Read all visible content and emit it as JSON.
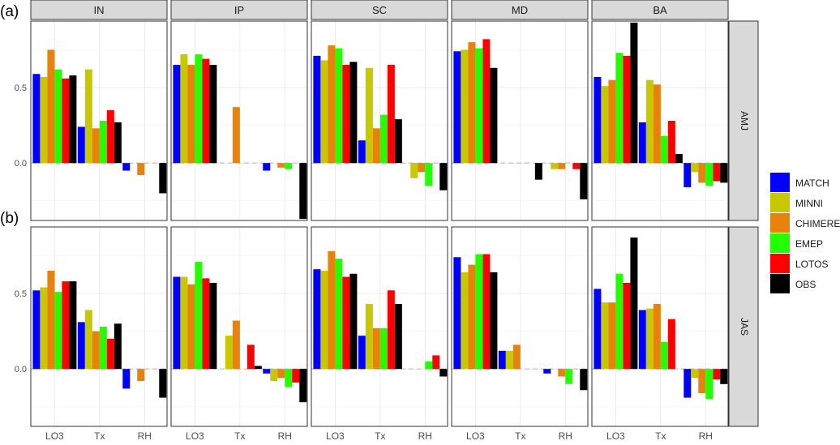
{
  "chart_data": {
    "type": "bar",
    "panel_labels": [
      "(a)",
      "(b)"
    ],
    "columns": [
      "IN",
      "IP",
      "SC",
      "MD",
      "BA"
    ],
    "rows": [
      "AMJ",
      "JAS"
    ],
    "categories": [
      "LO3",
      "Tx",
      "RH"
    ],
    "ylim": [
      -0.38,
      0.94
    ],
    "y_ticks": [
      "0.0",
      "0.5"
    ],
    "y_tick_values": [
      0.0,
      0.5
    ],
    "grid": true,
    "legend_position": "right",
    "series_names": [
      "MATCH",
      "MINNI",
      "CHIMERE",
      "EMEP",
      "LOTOS",
      "OBS"
    ],
    "series_colors": [
      "#0000ff",
      "#c8c800",
      "#e8820a",
      "#22ff00",
      "#ff0000",
      "#000000"
    ],
    "panels": {
      "AMJ": {
        "IN": [
          [
            0.59,
            0.57,
            0.75,
            0.62,
            0.56,
            0.58
          ],
          [
            0.24,
            0.62,
            0.23,
            0.28,
            0.35,
            0.27
          ],
          [
            -0.05,
            0,
            -0.08,
            0,
            0,
            -0.2
          ]
        ],
        "IP": [
          [
            0.65,
            0.72,
            0.65,
            0.72,
            0.69,
            0.65
          ],
          [
            0,
            0,
            0.37,
            0,
            0,
            0
          ],
          [
            -0.05,
            0,
            -0.03,
            -0.04,
            0,
            -0.37
          ]
        ],
        "SC": [
          [
            0.71,
            0.68,
            0.78,
            0.76,
            0.65,
            0.67
          ],
          [
            0.15,
            0.63,
            0.23,
            0.32,
            0.65,
            0.29
          ],
          [
            0,
            -0.1,
            -0.06,
            -0.15,
            0,
            -0.18
          ]
        ],
        "MD": [
          [
            0.74,
            0.75,
            0.8,
            0.76,
            0.82,
            0.63
          ],
          [
            0,
            0,
            0,
            0,
            0,
            -0.11
          ],
          [
            0,
            -0.04,
            -0.04,
            0,
            -0.04,
            -0.24
          ]
        ],
        "BA": [
          [
            0.57,
            0.51,
            0.55,
            0.73,
            0.71,
            0.93
          ],
          [
            0.27,
            0.55,
            0.52,
            0.18,
            0.28,
            0.06
          ],
          [
            -0.16,
            -0.06,
            -0.13,
            -0.15,
            -0.12,
            -0.13
          ]
        ]
      },
      "JAS": {
        "IN": [
          [
            0.52,
            0.54,
            0.65,
            0.51,
            0.58,
            0.58
          ],
          [
            0.31,
            0.39,
            0.25,
            0.28,
            0.2,
            0.3
          ],
          [
            -0.13,
            0,
            -0.08,
            0,
            0,
            -0.19
          ]
        ],
        "IP": [
          [
            0.61,
            0.61,
            0.56,
            0.71,
            0.6,
            0.57
          ],
          [
            0,
            0.22,
            0.32,
            0,
            0.16,
            0.02
          ],
          [
            -0.03,
            -0.08,
            -0.06,
            -0.12,
            -0.09,
            -0.22
          ]
        ],
        "SC": [
          [
            0.66,
            0.65,
            0.78,
            0.73,
            0.61,
            0.63
          ],
          [
            0.22,
            0.43,
            0.27,
            0.27,
            0.52,
            0.43
          ],
          [
            0,
            0,
            0,
            0.05,
            0.09,
            -0.05
          ]
        ],
        "MD": [
          [
            0.74,
            0.64,
            0.69,
            0.76,
            0.76,
            0.64
          ],
          [
            0.12,
            0.12,
            0.16,
            0,
            0,
            0
          ],
          [
            -0.03,
            0,
            -0.05,
            -0.1,
            0,
            -0.14
          ]
        ],
        "BA": [
          [
            0.53,
            0.44,
            0.44,
            0.63,
            0.57,
            0.87
          ],
          [
            0.39,
            0.4,
            0.43,
            0.18,
            0.33,
            0
          ],
          [
            -0.19,
            -0.06,
            -0.16,
            -0.2,
            -0.07,
            -0.1
          ]
        ]
      }
    }
  }
}
